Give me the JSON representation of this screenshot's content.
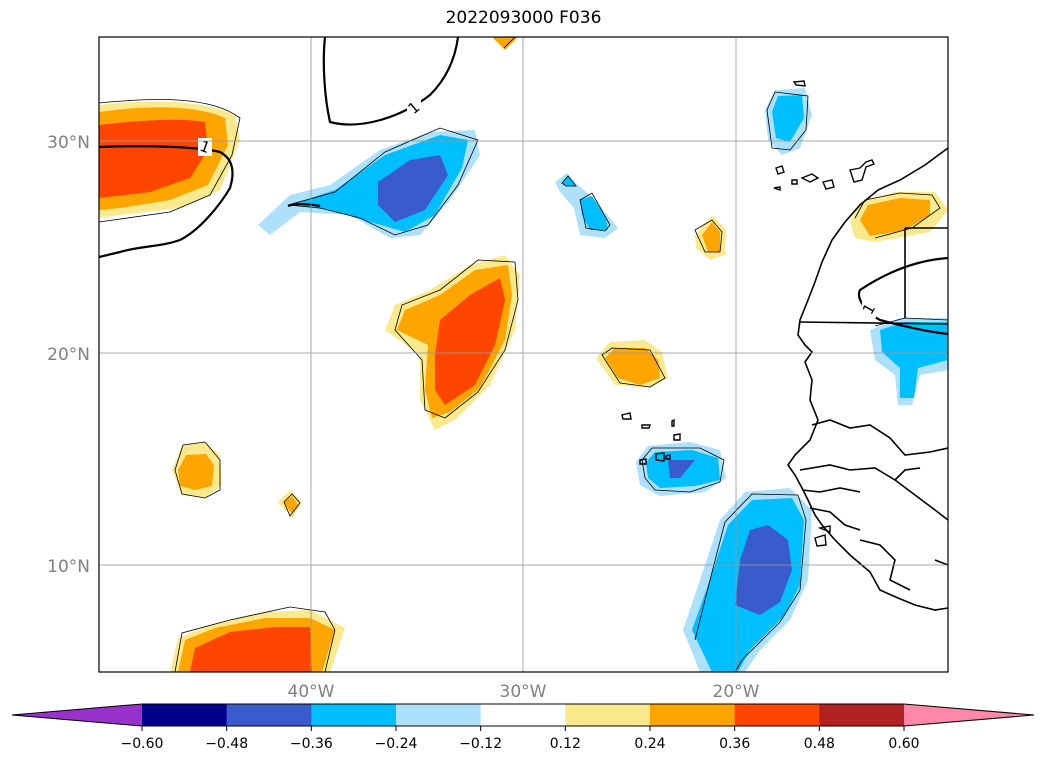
{
  "title": "2022093000 F036",
  "map": {
    "lon_range": [
      -50,
      -10
    ],
    "lat_range": [
      5,
      35
    ],
    "gridlines": true,
    "lon_ticks": [
      {
        "lon": -40,
        "label": "40°W"
      },
      {
        "lon": -30,
        "label": "30°W"
      },
      {
        "lon": -20,
        "label": "20°W"
      }
    ],
    "lat_ticks": [
      {
        "lat": 30,
        "label": "30°N"
      },
      {
        "lat": 20,
        "label": "20°N"
      },
      {
        "lat": 10,
        "label": "10°N"
      }
    ],
    "contour_labels": [
      "1",
      "1",
      "1"
    ]
  },
  "colorbar": {
    "extend": "both",
    "under_color": "#9932CC",
    "over_color": "#FF88AA",
    "colors": [
      "#00008B",
      "#3A5BCC",
      "#00BFFF",
      "#ADE0FA",
      "#FFFFFF",
      "#FBE98E",
      "#FFA500",
      "#FF4500",
      "#B22222"
    ],
    "ticks": [
      "−0.60",
      "−0.48",
      "−0.36",
      "−0.24",
      "−0.12",
      "0.12",
      "0.24",
      "0.36",
      "0.48",
      "0.60"
    ]
  }
}
